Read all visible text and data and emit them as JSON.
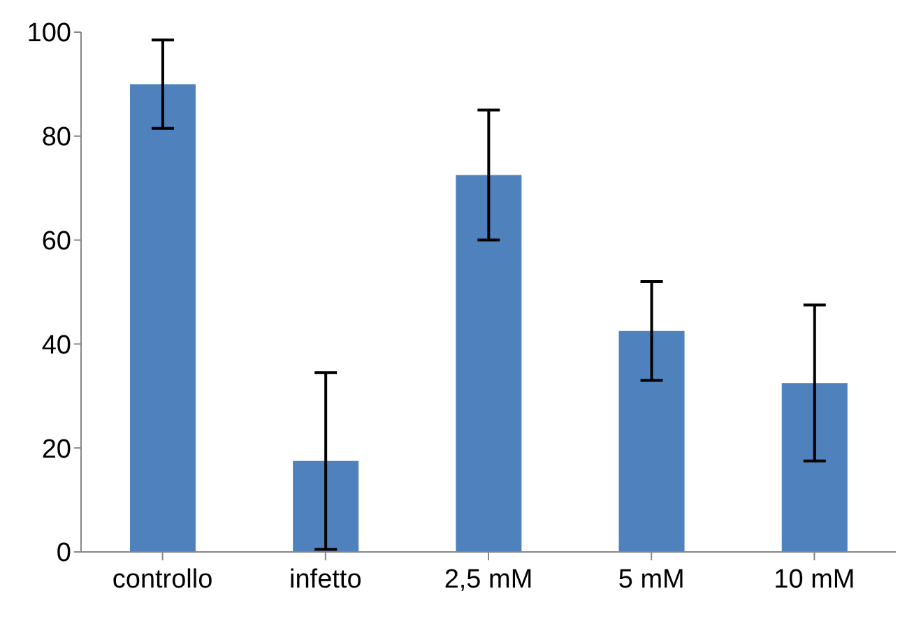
{
  "chart_data": {
    "type": "bar",
    "categories": [
      "controllo",
      "infetto",
      "2,5 mM",
      "5 mM",
      "10 mM"
    ],
    "values": [
      90,
      17.5,
      72.5,
      42.5,
      32.5
    ],
    "errors": [
      8.5,
      17,
      12.5,
      9.5,
      15
    ],
    "color": "#4f81bd",
    "ylim": [
      0,
      100
    ],
    "yticks": [
      0,
      20,
      40,
      60,
      80,
      100
    ],
    "grid": false,
    "legend": false
  }
}
